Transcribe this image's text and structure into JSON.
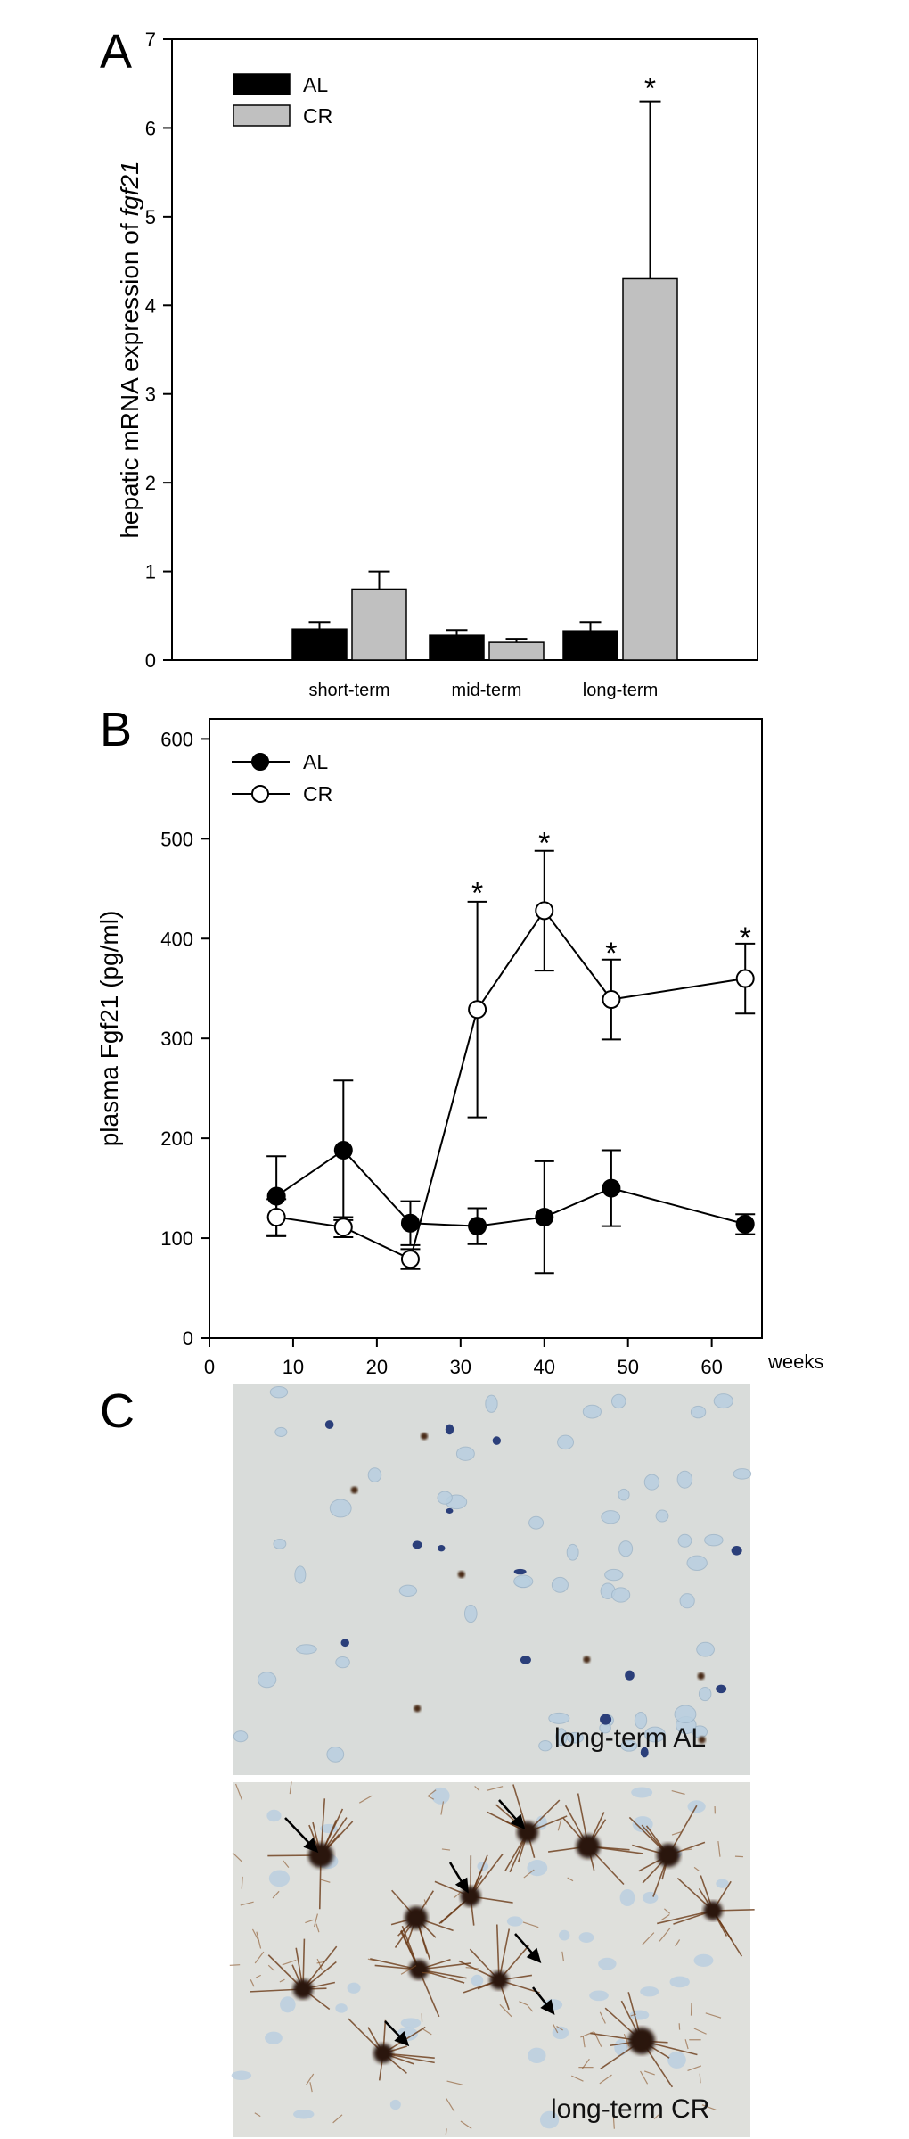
{
  "panels": {
    "a": {
      "letter": "A",
      "ylabel_prefix": "hepatic mRNA expression of ",
      "ylabel_italic": "fgf21",
      "legend": [
        {
          "label": "AL",
          "color": "#000000"
        },
        {
          "label": "CR",
          "color": "#c0c0c0"
        }
      ]
    },
    "b": {
      "letter": "B",
      "ylabel": "plasma Fgf21 (pg/ml)",
      "xunit": "weeks",
      "legend": [
        {
          "label": "AL",
          "marker": "filled-circle"
        },
        {
          "label": "CR",
          "marker": "open-circle"
        }
      ]
    },
    "c": {
      "letter": "C",
      "image_top_label": "long-term AL",
      "image_bottom_label": "long-term CR"
    }
  },
  "chart_data": [
    {
      "type": "bar",
      "categories": [
        "short-term",
        "mid-term",
        "long-term"
      ],
      "ylim": [
        0,
        7
      ],
      "yticks": [
        0,
        1,
        2,
        3,
        4,
        5,
        6,
        7
      ],
      "series": [
        {
          "name": "AL",
          "color": "#000000",
          "values": [
            0.35,
            0.28,
            0.33
          ],
          "errors": [
            0.08,
            0.06,
            0.1
          ]
        },
        {
          "name": "CR",
          "color": "#c0c0c0",
          "values": [
            0.8,
            0.2,
            4.3
          ],
          "errors": [
            0.2,
            0.04,
            2.0
          ]
        }
      ],
      "annotations": [
        {
          "text": "*",
          "category": "long-term",
          "series": "CR",
          "y": 6.55
        }
      ]
    },
    {
      "type": "line",
      "x": [
        8,
        16,
        24,
        32,
        40,
        48,
        64
      ],
      "xlim": [
        0,
        66
      ],
      "xticks": [
        0,
        10,
        20,
        30,
        40,
        50,
        60
      ],
      "ylim": [
        0,
        620
      ],
      "yticks": [
        0,
        100,
        200,
        300,
        400,
        500,
        600
      ],
      "series": [
        {
          "name": "AL",
          "marker": "filled",
          "values": [
            142,
            188,
            115,
            112,
            121,
            150,
            114
          ],
          "errors": [
            40,
            70,
            22,
            18,
            56,
            38,
            10
          ]
        },
        {
          "name": "CR",
          "marker": "open",
          "values": [
            121,
            111,
            79,
            329,
            428,
            339,
            360
          ],
          "errors": [
            18,
            10,
            10,
            108,
            60,
            40,
            35
          ]
        }
      ],
      "annotations": [
        {
          "text": "*",
          "x": 32,
          "y": 455
        },
        {
          "text": "*",
          "x": 40,
          "y": 505
        },
        {
          "text": "*",
          "x": 48,
          "y": 395
        },
        {
          "text": "*",
          "x": 64,
          "y": 410
        }
      ]
    }
  ]
}
